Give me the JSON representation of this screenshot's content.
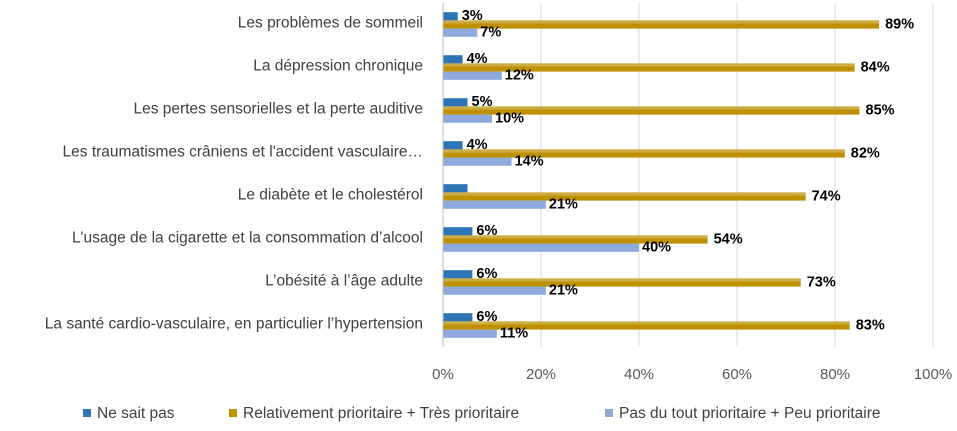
{
  "chart_data": {
    "type": "bar",
    "orientation": "horizontal",
    "categories": [
      "Les problèmes de sommeil",
      "La dépression chronique",
      "Les pertes sensorielles et  la perte auditive",
      "Les traumatismes crâniens  et l'accident vasculaire…",
      "Le diabète et le cholestérol",
      "L'usage de la cigarette et la consommation d’alcool",
      "L’obésité à l’âge adulte",
      "La santé cardio-vasculaire, en particulier l’hypertension"
    ],
    "series": [
      {
        "name": "Ne sait pas",
        "color": "#2E75B6",
        "values": [
          3,
          4,
          5,
          4,
          5,
          6,
          6,
          6
        ],
        "labels": [
          "3%",
          "4%",
          "5%",
          "4%",
          "",
          "6%",
          "6%",
          "6%"
        ]
      },
      {
        "name": "Relativement prioritaire + Très prioritaire",
        "color": "#BF9000",
        "values": [
          89,
          84,
          85,
          82,
          74,
          54,
          73,
          83
        ],
        "labels": [
          "89%",
          "84%",
          "85%",
          "82%",
          "74%",
          "54%",
          "73%",
          "83%"
        ]
      },
      {
        "name": "Pas du tout prioritaire + Peu prioritaire",
        "color": "#8EA9DB",
        "values": [
          7,
          12,
          10,
          14,
          21,
          40,
          21,
          11
        ],
        "labels": [
          "7%",
          "12%",
          "10%",
          "14%",
          "21%",
          "40%",
          "21%",
          "11%"
        ]
      }
    ],
    "xlim": [
      0,
      100
    ],
    "xticks": [
      "0%",
      "20%",
      "40%",
      "60%",
      "80%",
      "100%"
    ],
    "grid": true,
    "legend_position": "bottom",
    "title": "",
    "xlabel": "",
    "ylabel": ""
  }
}
